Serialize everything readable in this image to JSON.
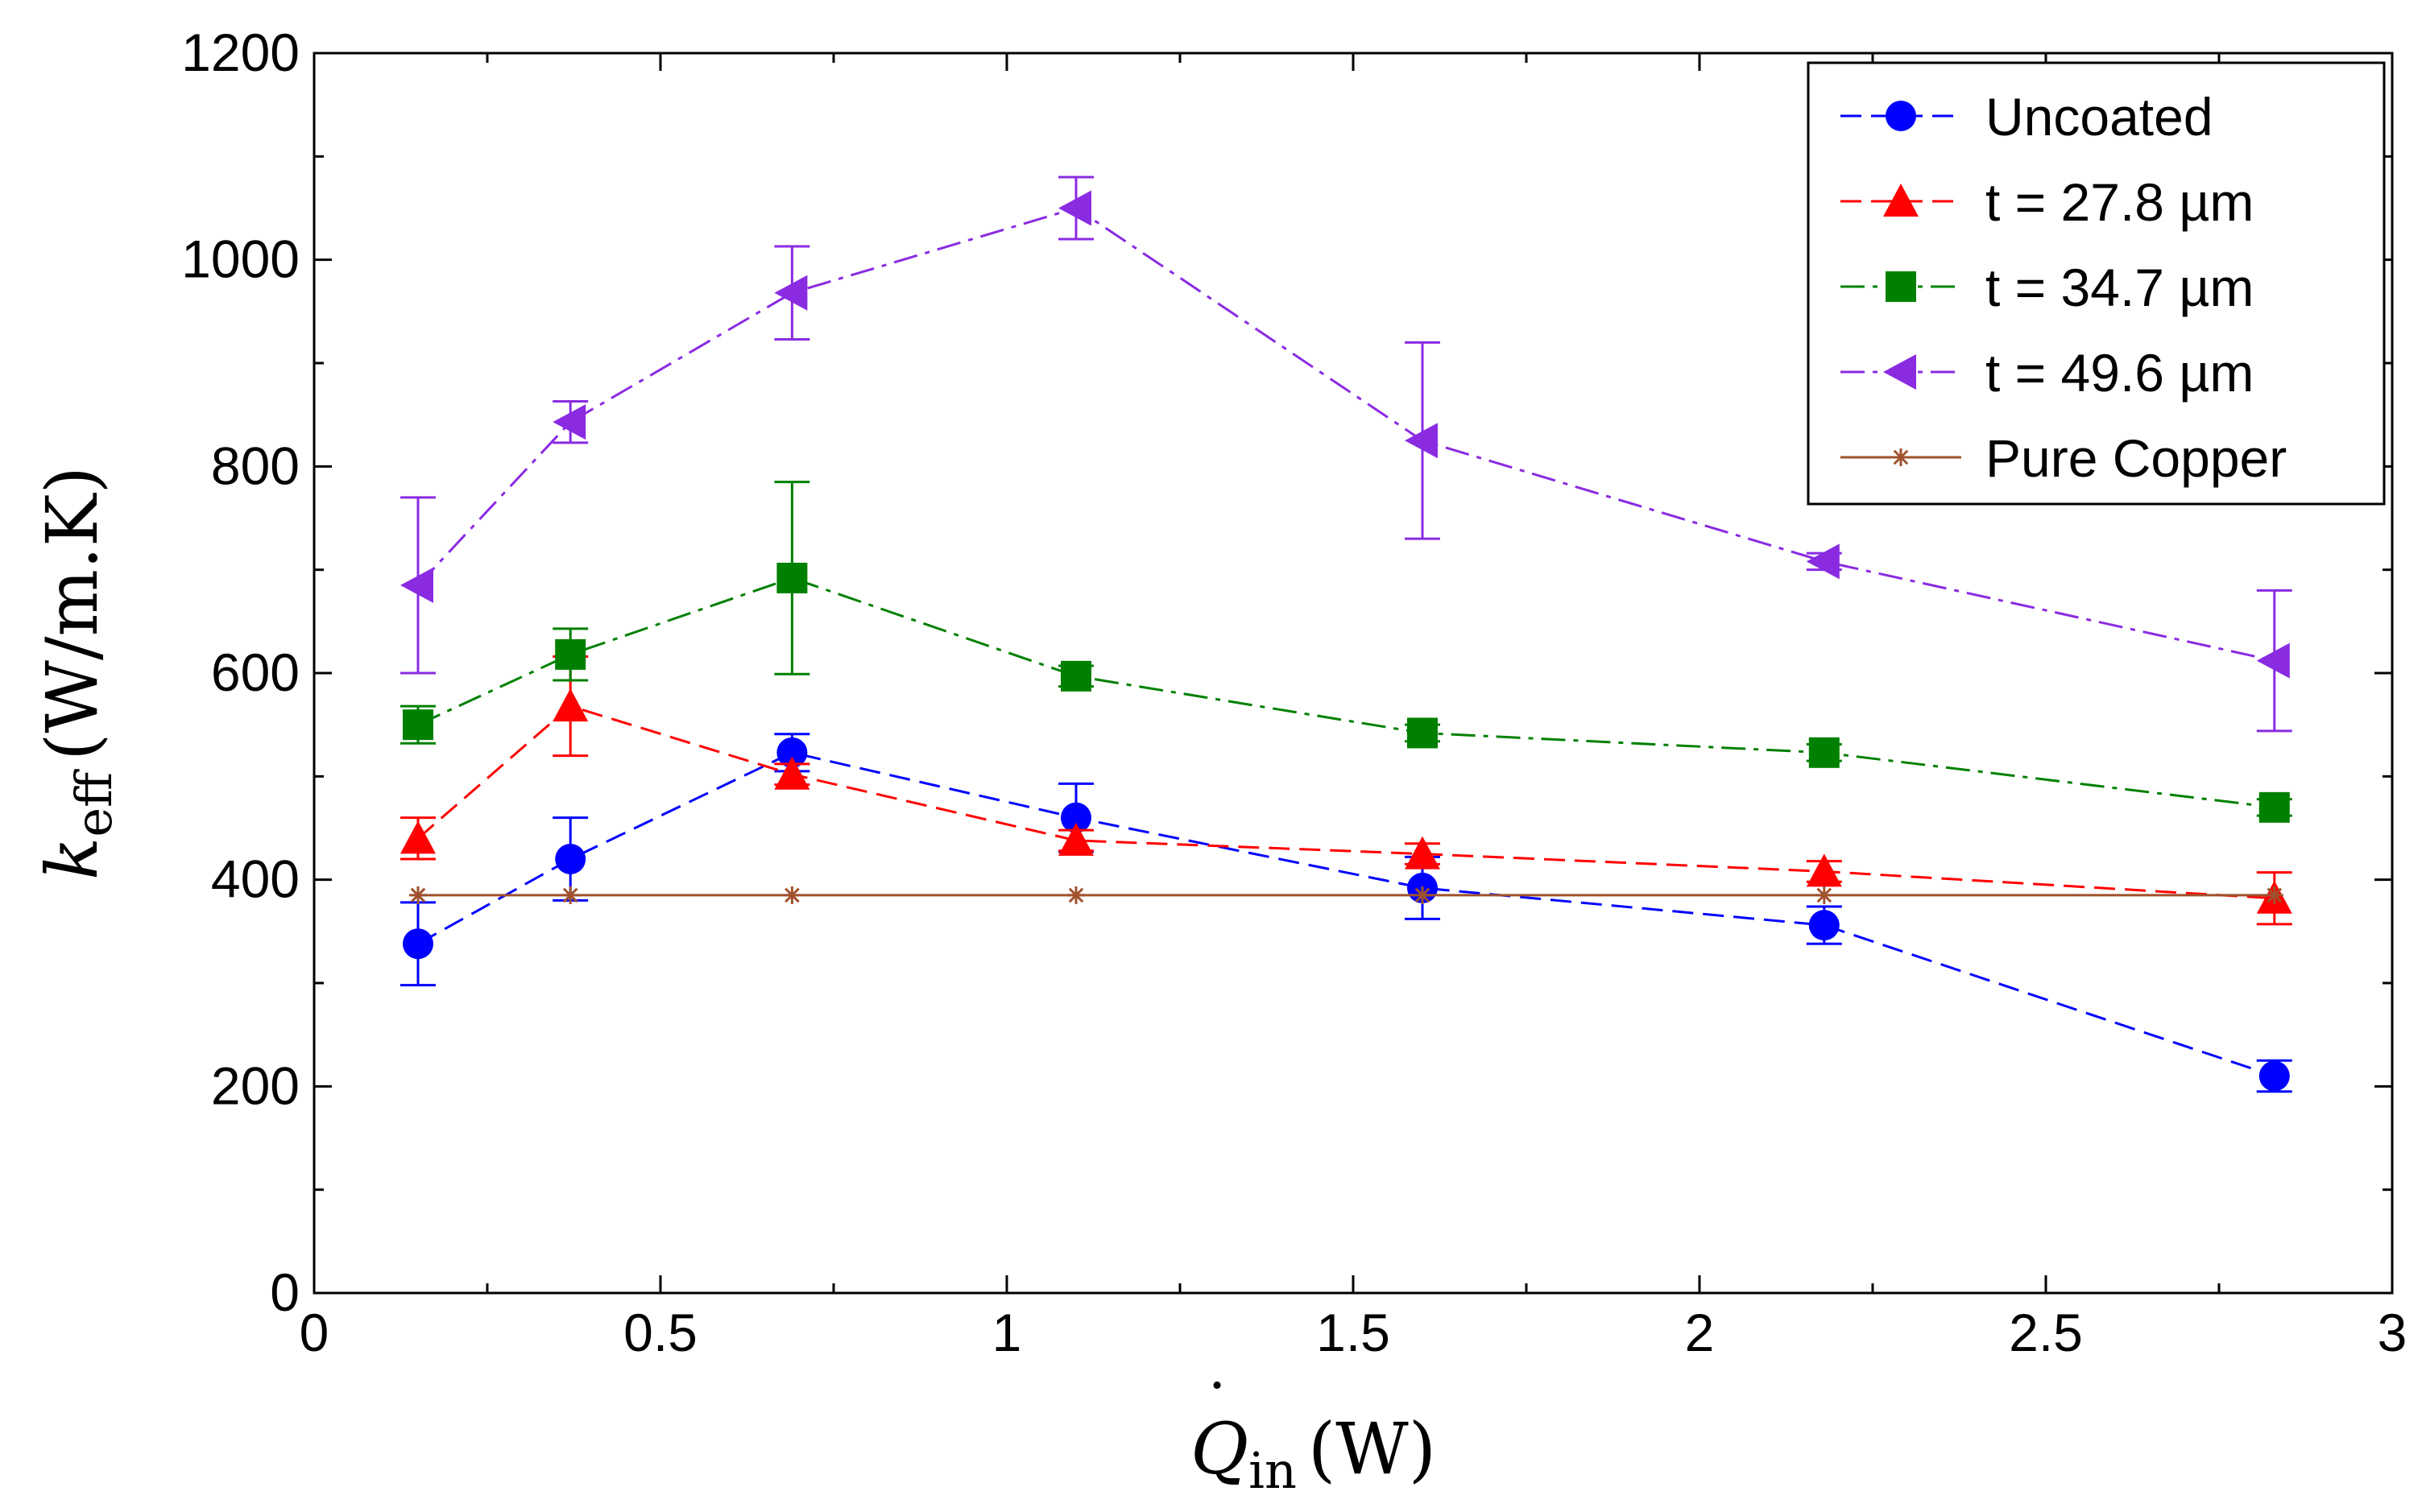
{
  "chart_data": {
    "type": "line",
    "title": "",
    "xlabel": {
      "main": "Q",
      "sub": "in",
      "unit": "(W)"
    },
    "ylabel": {
      "main": "k",
      "sub": "eff",
      "unit": "(W/m.K)"
    },
    "xlim": [
      0,
      3
    ],
    "ylim": [
      0,
      1200
    ],
    "x_ticks": [
      0,
      0.5,
      1,
      1.5,
      2,
      2.5,
      3
    ],
    "x_tick_labels": [
      "0",
      "0.5",
      "1",
      "1.5",
      "2",
      "2.5",
      "3"
    ],
    "y_ticks": [
      0,
      200,
      400,
      600,
      800,
      1000,
      1200
    ],
    "y_tick_labels": [
      "0",
      "200",
      "400",
      "600",
      "800",
      "1000",
      "1200"
    ],
    "grid": false,
    "legend_position": "top-right",
    "x": [
      0.15,
      0.37,
      0.69,
      1.1,
      1.6,
      2.18,
      2.83
    ],
    "series": [
      {
        "name": "Uncoated",
        "color": "#0000ff",
        "marker": "circle",
        "dash": "dashed",
        "values": [
          338,
          420,
          523,
          460,
          392,
          356,
          210
        ],
        "errors": [
          40,
          40,
          18,
          33,
          30,
          18,
          15
        ]
      },
      {
        "name": "t = 27.8 µm",
        "color": "#ff0000",
        "marker": "triangle-up",
        "dash": "dashed",
        "values": [
          440,
          568,
          502,
          438,
          425,
          408,
          382
        ],
        "errors": [
          20,
          48,
          10,
          10,
          10,
          10,
          25
        ]
      },
      {
        "name": "t = 34.7 µm",
        "color": "#008000",
        "marker": "square",
        "dash": "dashdot",
        "values": [
          550,
          618,
          692,
          597,
          542,
          523,
          470
        ],
        "errors": [
          18,
          25,
          93,
          10,
          8,
          8,
          8
        ]
      },
      {
        "name": "t = 49.6 µm",
        "color": "#8a2be2",
        "marker": "triangle-left",
        "dash": "dashdot",
        "values": [
          685,
          843,
          968,
          1050,
          825,
          708,
          612
        ],
        "errors": [
          85,
          20,
          45,
          30,
          95,
          8,
          68
        ]
      },
      {
        "name": "Pure Copper",
        "color": "#a0522d",
        "marker": "star",
        "dash": "solid",
        "values": [
          385,
          385,
          385,
          385,
          385,
          385,
          385
        ],
        "errors": [
          0,
          0,
          0,
          0,
          0,
          0,
          0
        ]
      }
    ]
  }
}
